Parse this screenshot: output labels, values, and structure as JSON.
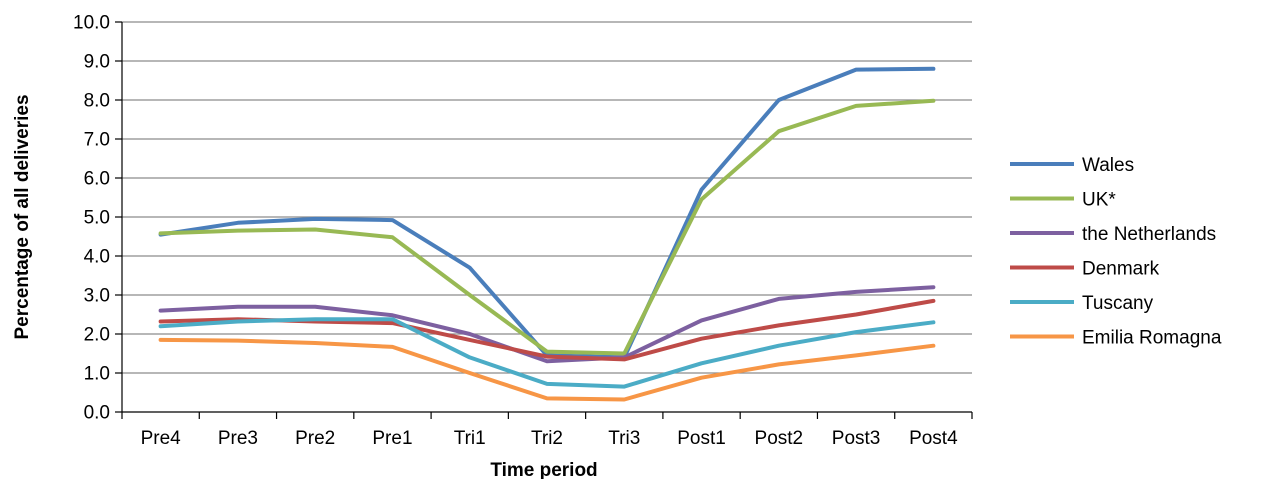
{
  "chart_data": {
    "type": "line",
    "title": "",
    "xlabel": "Time period",
    "ylabel": "Percentage of all deliveries",
    "categories": [
      "Pre4",
      "Pre3",
      "Pre2",
      "Pre1",
      "Tri1",
      "Tri2",
      "Tri3",
      "Post1",
      "Post2",
      "Post3",
      "Post4"
    ],
    "ylim": [
      0,
      10
    ],
    "yticks": [
      "0.0",
      "1.0",
      "2.0",
      "3.0",
      "4.0",
      "5.0",
      "6.0",
      "7.0",
      "8.0",
      "9.0",
      "10.0"
    ],
    "grid": true,
    "legend_position": "right",
    "series": [
      {
        "name": "Wales",
        "color": "#4a7ebb",
        "values": [
          4.55,
          4.85,
          4.95,
          4.92,
          3.7,
          1.45,
          1.4,
          5.7,
          8.0,
          8.78,
          8.8
        ]
      },
      {
        "name": "UK*",
        "color": "#98b954",
        "values": [
          4.58,
          4.65,
          4.68,
          4.48,
          3.0,
          1.55,
          1.5,
          5.45,
          7.2,
          7.85,
          7.98
        ]
      },
      {
        "name": "the Netherlands",
        "color": "#7d60a0",
        "values": [
          2.6,
          2.7,
          2.7,
          2.48,
          2.0,
          1.3,
          1.4,
          2.35,
          2.9,
          3.08,
          3.2
        ]
      },
      {
        "name": "Denmark",
        "color": "#be4b48",
        "values": [
          2.32,
          2.38,
          2.32,
          2.28,
          1.85,
          1.42,
          1.35,
          1.88,
          2.22,
          2.5,
          2.85
        ]
      },
      {
        "name": "Tuscany",
        "color": "#4bacc6",
        "values": [
          2.2,
          2.32,
          2.38,
          2.38,
          1.4,
          0.72,
          0.65,
          1.25,
          1.7,
          2.05,
          2.3
        ]
      },
      {
        "name": "Emilia Romagna",
        "color": "#f79646",
        "values": [
          1.85,
          1.83,
          1.77,
          1.67,
          1.0,
          0.35,
          0.32,
          0.88,
          1.22,
          1.45,
          1.7
        ]
      }
    ]
  }
}
